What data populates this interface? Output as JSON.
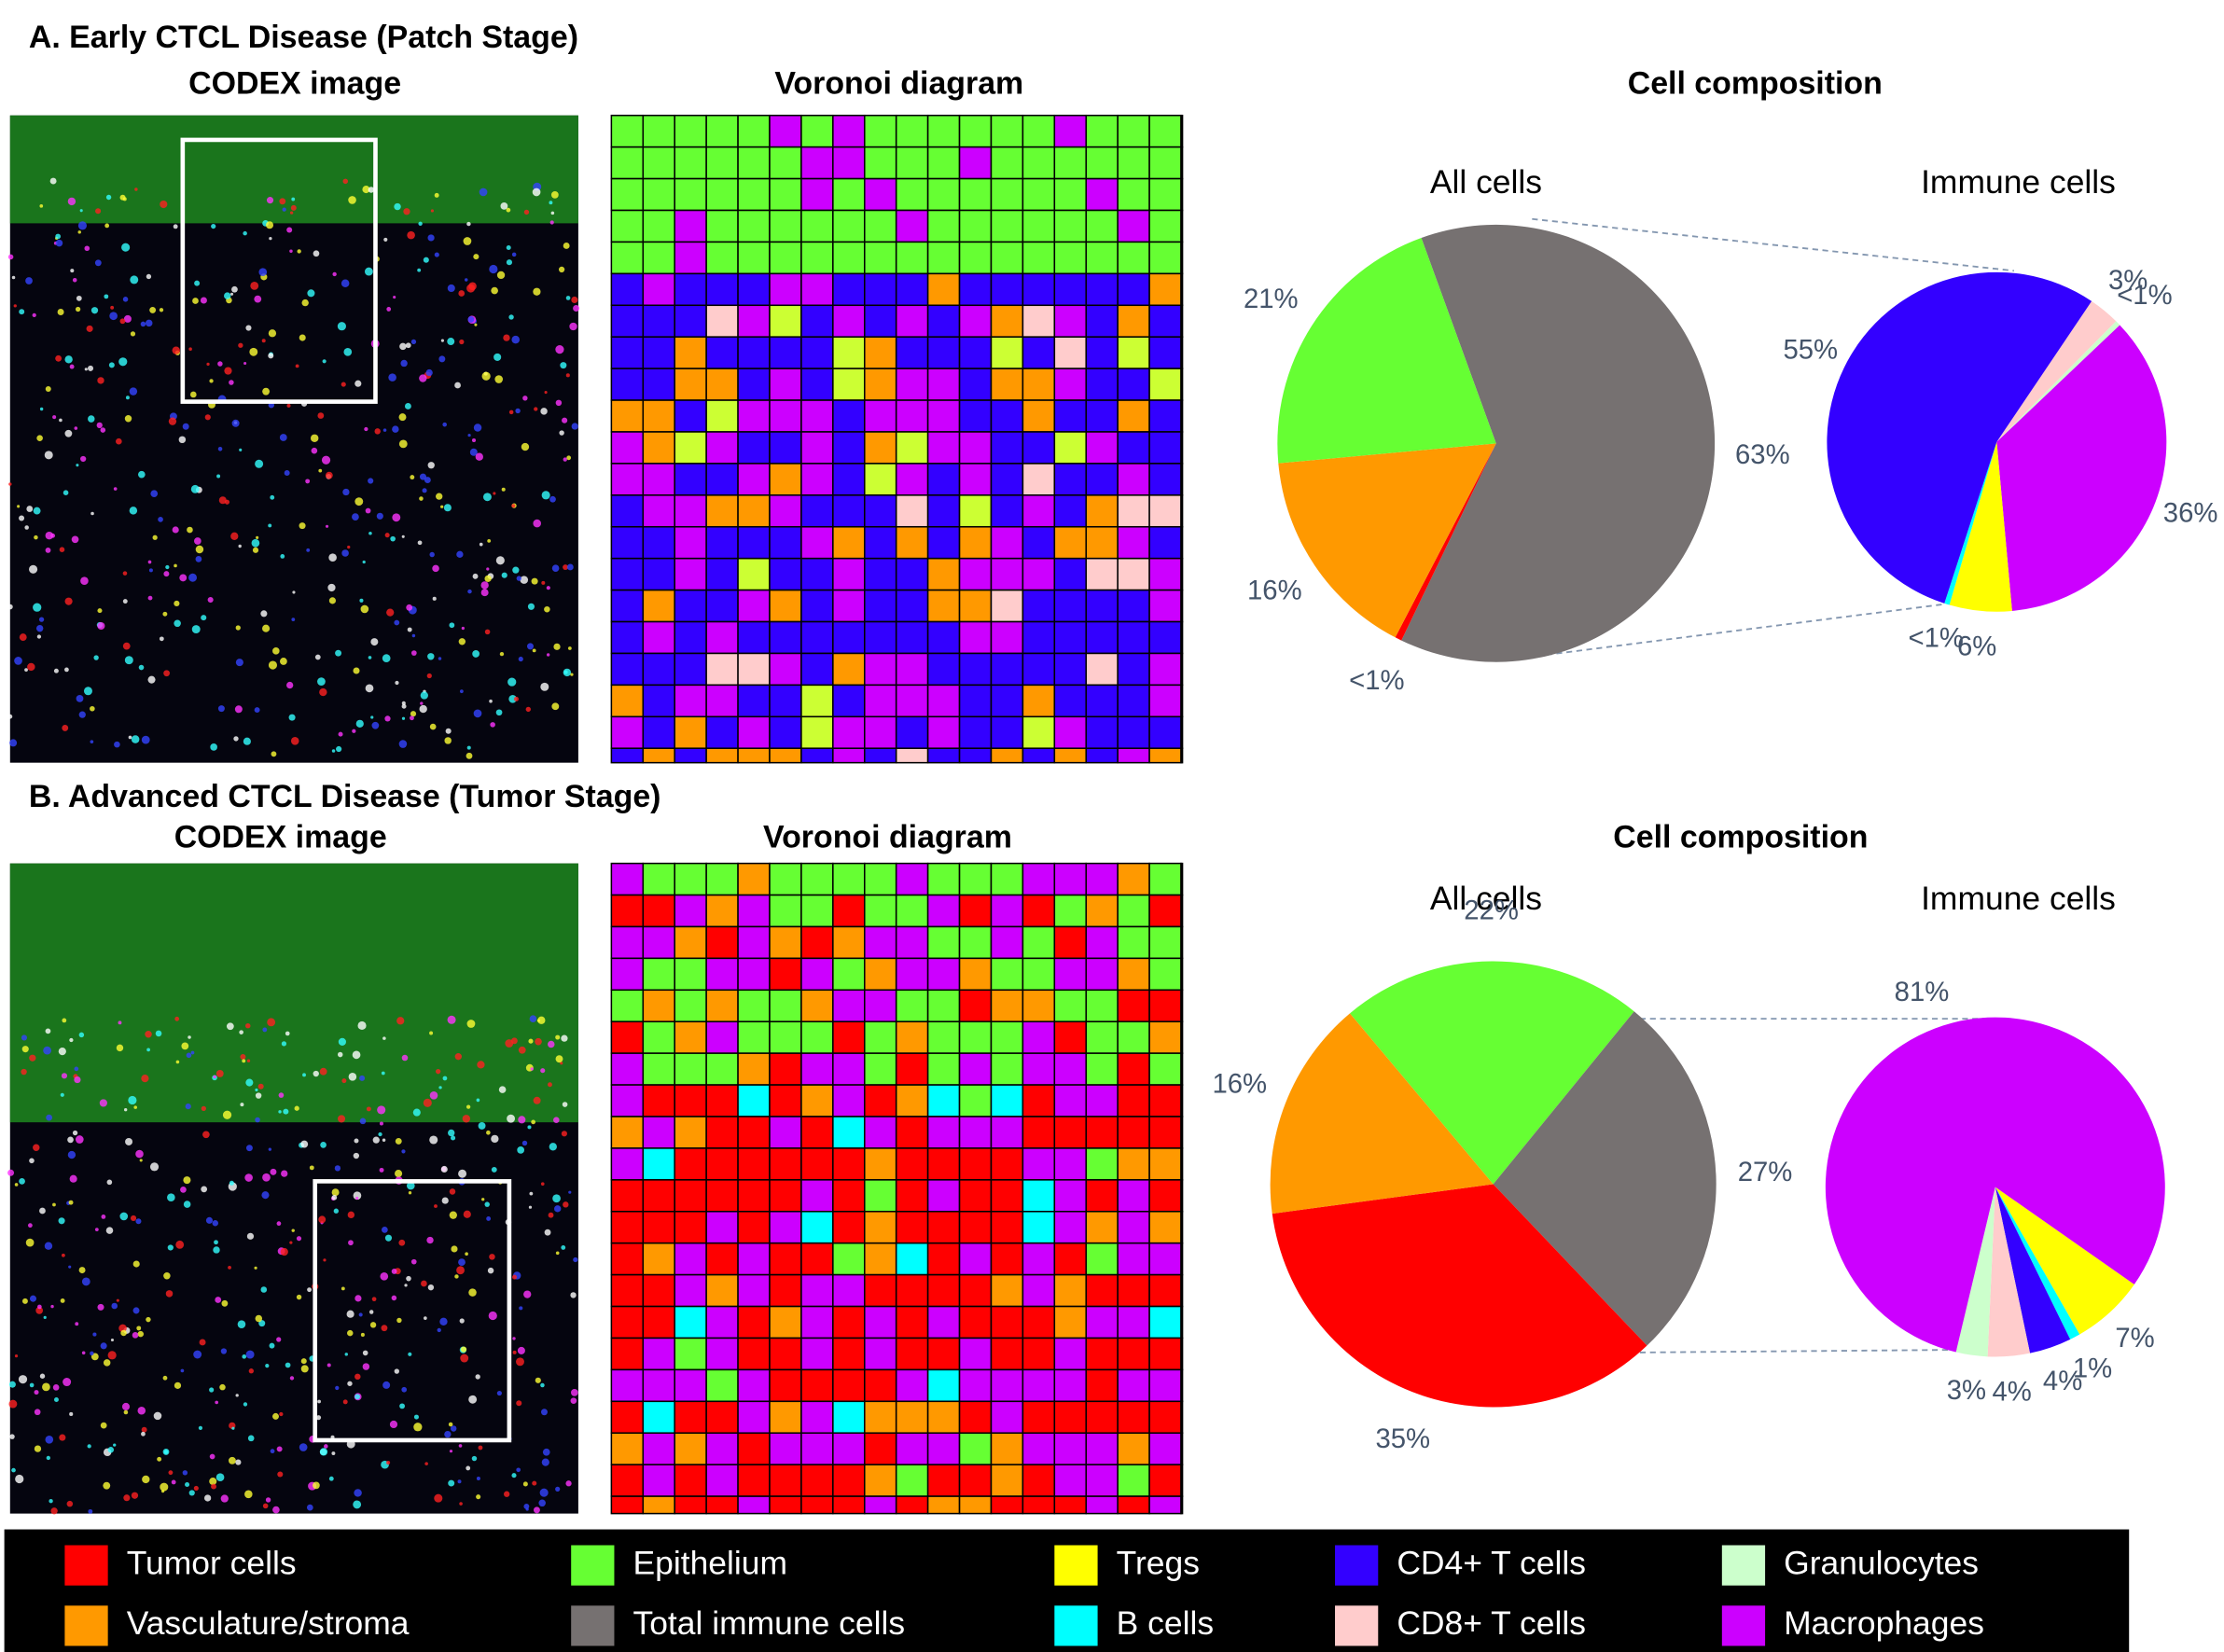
{
  "panels": [
    {
      "label": "A. Early CTCL Disease (Patch Stage)",
      "codex_title": "CODEX image",
      "voronoi_title": "Voronoi diagram",
      "composition_title": "Cell composition"
    },
    {
      "label": "B. Advanced CTCL Disease (Tumor Stage)",
      "codex_title": "CODEX image",
      "voronoi_title": "Voronoi diagram",
      "composition_title": "Cell composition"
    }
  ],
  "chart_data": [
    {
      "type": "pie",
      "title": "All cells",
      "categories": [
        "Total immune cells",
        "Tumor cells",
        "Vasculature/stroma",
        "Epithelium"
      ],
      "values": [
        63,
        0.5,
        16,
        21
      ],
      "value_labels": [
        "63%",
        "<1%",
        "16%",
        "21%"
      ],
      "colors": [
        "#767171",
        "#ff0000",
        "#ff9900",
        "#66ff33"
      ]
    },
    {
      "type": "pie",
      "title": "Immune cells",
      "categories": [
        "CD8+ T cells",
        "Granulocytes",
        "Macrophages",
        "Tregs",
        "B cells",
        "CD4+ T cells"
      ],
      "values": [
        3,
        0.5,
        36,
        6,
        0.5,
        55
      ],
      "value_labels": [
        "3%",
        "<1%",
        "36%",
        "6%",
        "<1%",
        "55%"
      ],
      "colors": [
        "#ffcccc",
        "#ccffcc",
        "#cc00ff",
        "#ffff00",
        "#00ffff",
        "#3300ff"
      ]
    },
    {
      "type": "pie",
      "title": "All cells",
      "categories": [
        "Epithelium",
        "Total immune cells",
        "Tumor cells",
        "Vasculature/stroma"
      ],
      "values": [
        22,
        27,
        35,
        16
      ],
      "value_labels": [
        "22%",
        "27%",
        "35%",
        "16%"
      ],
      "colors": [
        "#66ff33",
        "#767171",
        "#ff0000",
        "#ff9900"
      ]
    },
    {
      "type": "pie",
      "title": "Immune cells",
      "categories": [
        "Tregs",
        "B cells",
        "CD4+ T cells",
        "CD8+ T cells",
        "Granulocytes",
        "Macrophages"
      ],
      "values": [
        7,
        1,
        4,
        4,
        3,
        81
      ],
      "value_labels": [
        "7%",
        "1%",
        "4%",
        "4%",
        "3%",
        "81%"
      ],
      "colors": [
        "#ffff00",
        "#00ffff",
        "#3300ff",
        "#ffcccc",
        "#ccffcc",
        "#cc00ff"
      ]
    }
  ],
  "legend": [
    {
      "name": "Tumor cells",
      "color": "#ff0000"
    },
    {
      "name": "Vasculature/stroma",
      "color": "#ff9900"
    },
    {
      "name": "Epithelium",
      "color": "#66ff33"
    },
    {
      "name": "Total immune cells",
      "color": "#767171"
    },
    {
      "name": "Tregs",
      "color": "#ffff00"
    },
    {
      "name": "B cells",
      "color": "#00ffff"
    },
    {
      "name": "CD4+ T cells",
      "color": "#3300ff"
    },
    {
      "name": "CD8+ T cells",
      "color": "#ffcccc"
    },
    {
      "name": "Granulocytes",
      "color": "#ccffcc"
    },
    {
      "name": "Macrophages",
      "color": "#cc00ff"
    }
  ]
}
